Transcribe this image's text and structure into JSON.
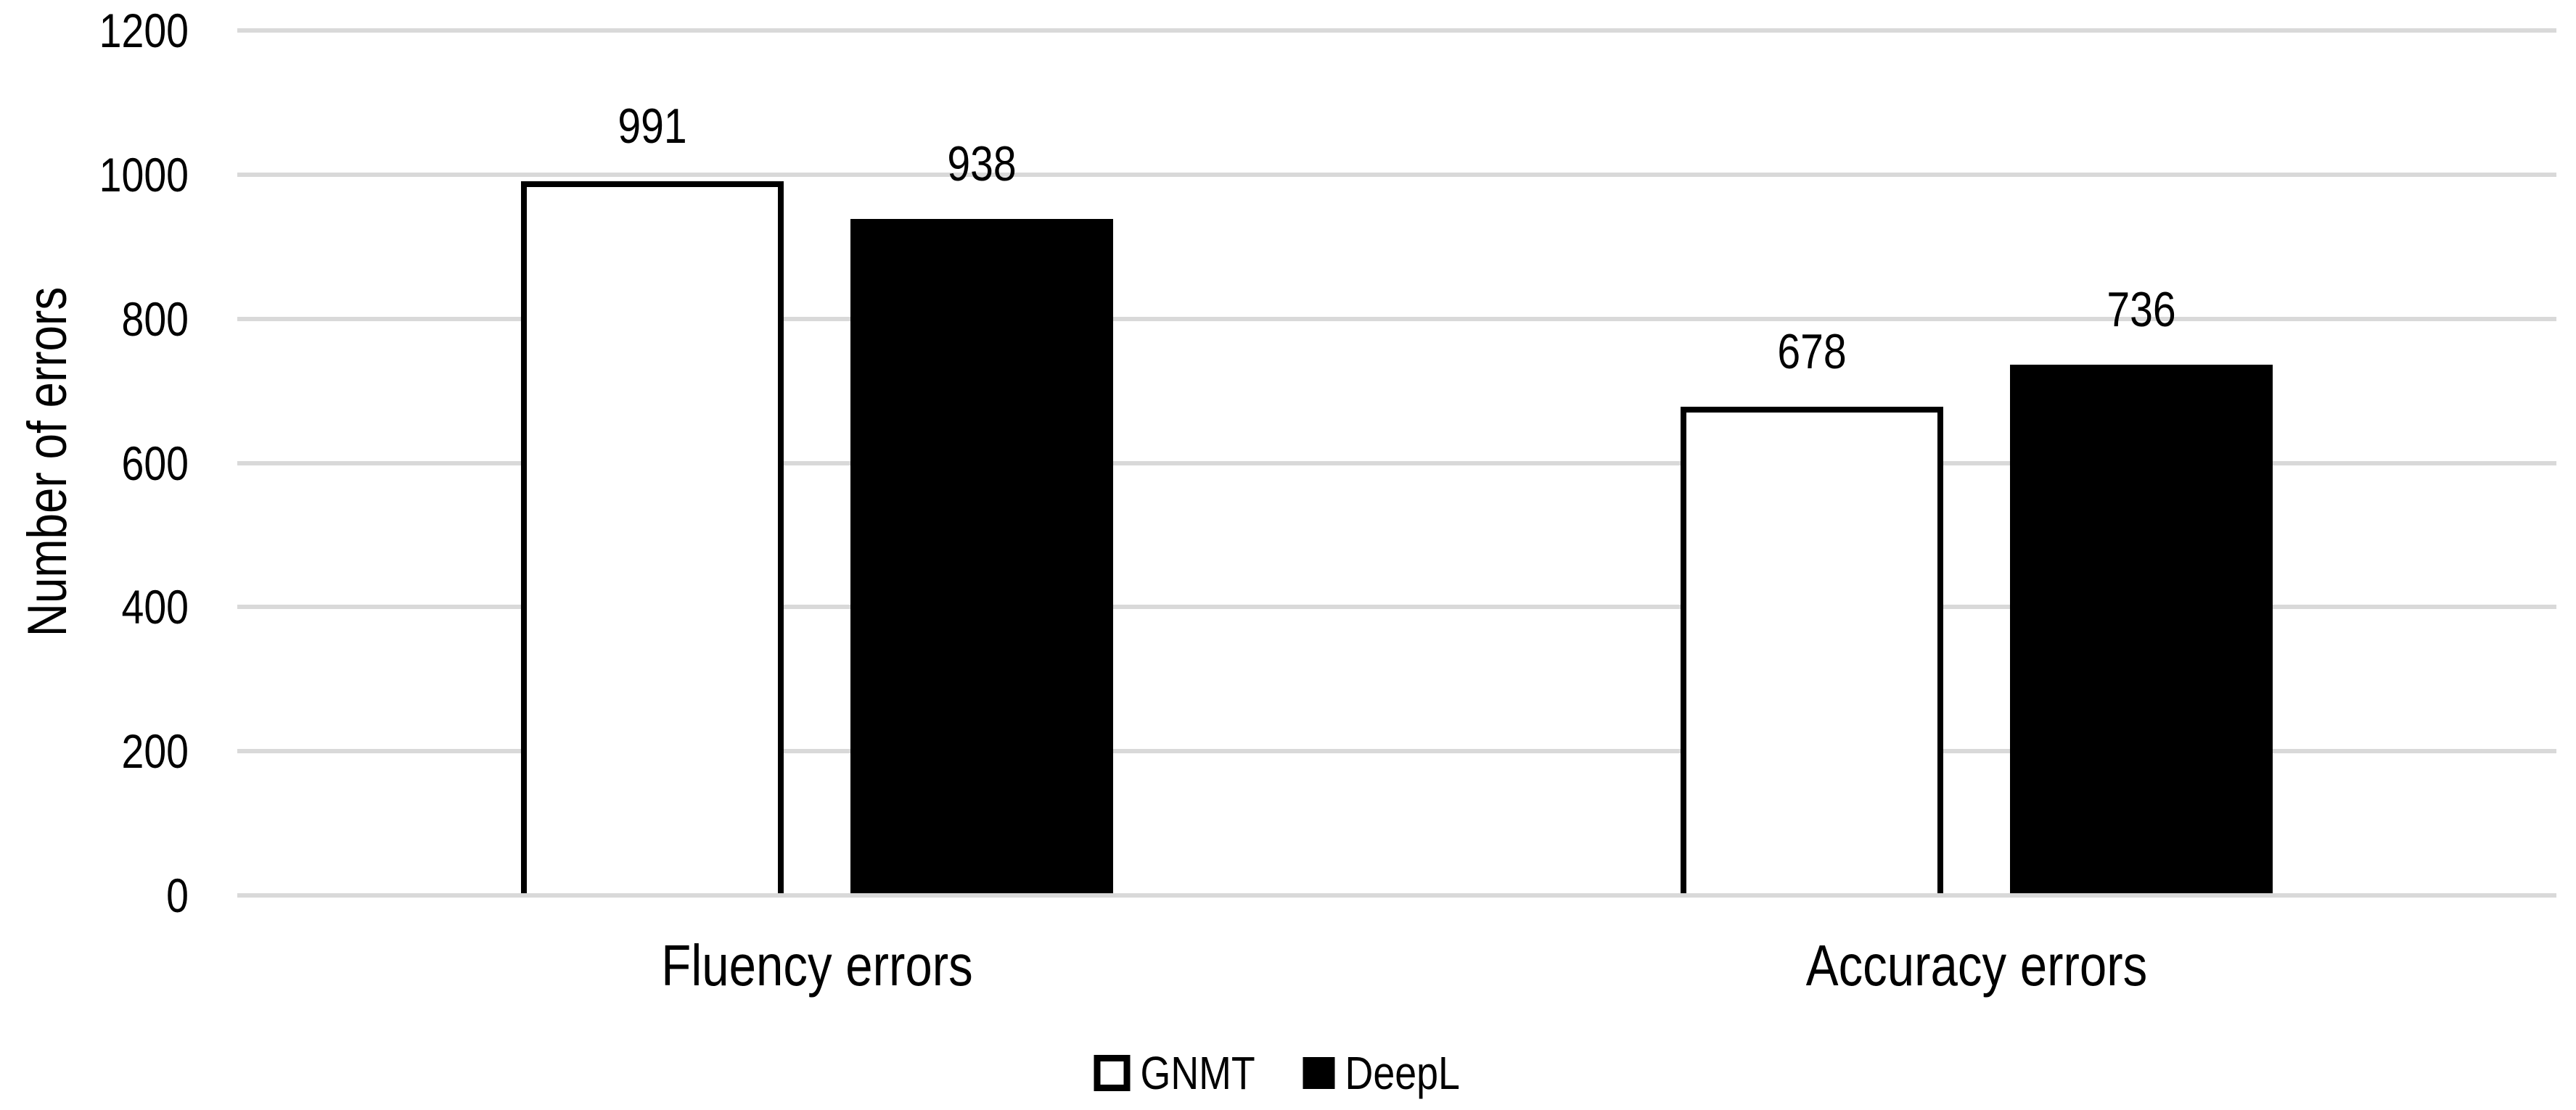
{
  "chart_data": {
    "type": "bar",
    "title": "",
    "categories": [
      "Fluency errors",
      "Accuracy errors"
    ],
    "series": [
      {
        "name": "GNMT",
        "values": [
          991,
          678
        ],
        "fill": "#FFFFFF",
        "border": "#000000"
      },
      {
        "name": "DeepL",
        "values": [
          938,
          736
        ],
        "fill": "#000000",
        "border": "#000000"
      }
    ],
    "data_labels": [
      [
        991,
        678
      ],
      [
        938,
        736
      ]
    ],
    "xlabel": "",
    "ylabel": "Number of errors",
    "ylim": [
      0,
      1200
    ],
    "y_ticks": [
      0,
      200,
      400,
      600,
      800,
      1000,
      1200
    ],
    "grid": "horizontal",
    "gridline_color": "#D9D9D9",
    "text_color": "#000000",
    "background_color": "#FFFFFF",
    "legend_position": "bottom-center",
    "legend_entries": [
      "GNMT",
      "DeepL"
    ]
  }
}
